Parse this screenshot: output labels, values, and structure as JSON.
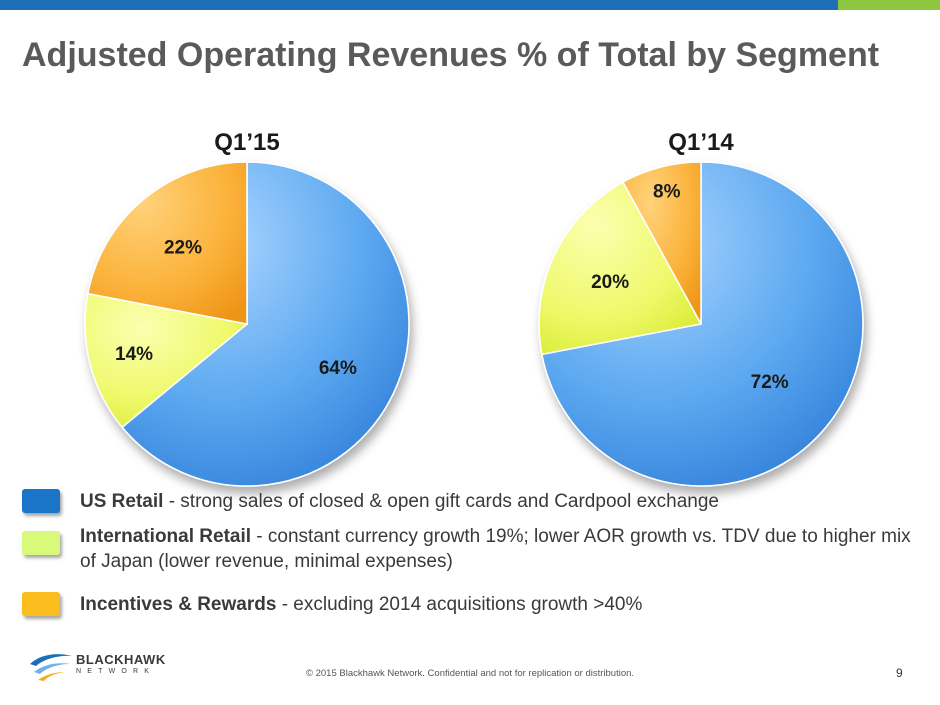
{
  "title": "Adjusted Operating Revenues % of Total by Segment",
  "chart_data": [
    {
      "type": "pie",
      "title": "Q1’15",
      "categories": [
        "US Retail",
        "International Retail",
        "Incentives & Rewards"
      ],
      "values": [
        64,
        14,
        22
      ],
      "labels": [
        "64%",
        "14%",
        "22%"
      ],
      "colors": [
        "#4f9ee8",
        "#eaf95a",
        "#fbab2c"
      ]
    },
    {
      "type": "pie",
      "title": "Q1’14",
      "categories": [
        "US Retail",
        "International Retail",
        "Incentives & Rewards"
      ],
      "values": [
        72,
        20,
        8
      ],
      "labels": [
        "72%",
        "20%",
        "8%"
      ],
      "colors": [
        "#4f9ee8",
        "#eaf95a",
        "#fbab2c"
      ]
    }
  ],
  "legend": [
    {
      "name": "US Retail",
      "desc": " - strong sales of  closed & open gift cards and Cardpool exchange",
      "color": "#1a74c8"
    },
    {
      "name": "International Retail",
      "desc": " - constant currency growth 19%; lower AOR growth vs. TDV due to higher mix of Japan (lower revenue, minimal expenses)",
      "color": "#d9f97a"
    },
    {
      "name": "Incentives & Rewards",
      "desc": " - excluding 2014 acquisitions growth >40%",
      "color": "#fbbd1e"
    }
  ],
  "logo": {
    "name": "BLACKHAWK",
    "sub": "NETWORK"
  },
  "footer": "© 2015 Blackhawk Network. Confidential and not for replication or distribution.",
  "page_number": "9"
}
